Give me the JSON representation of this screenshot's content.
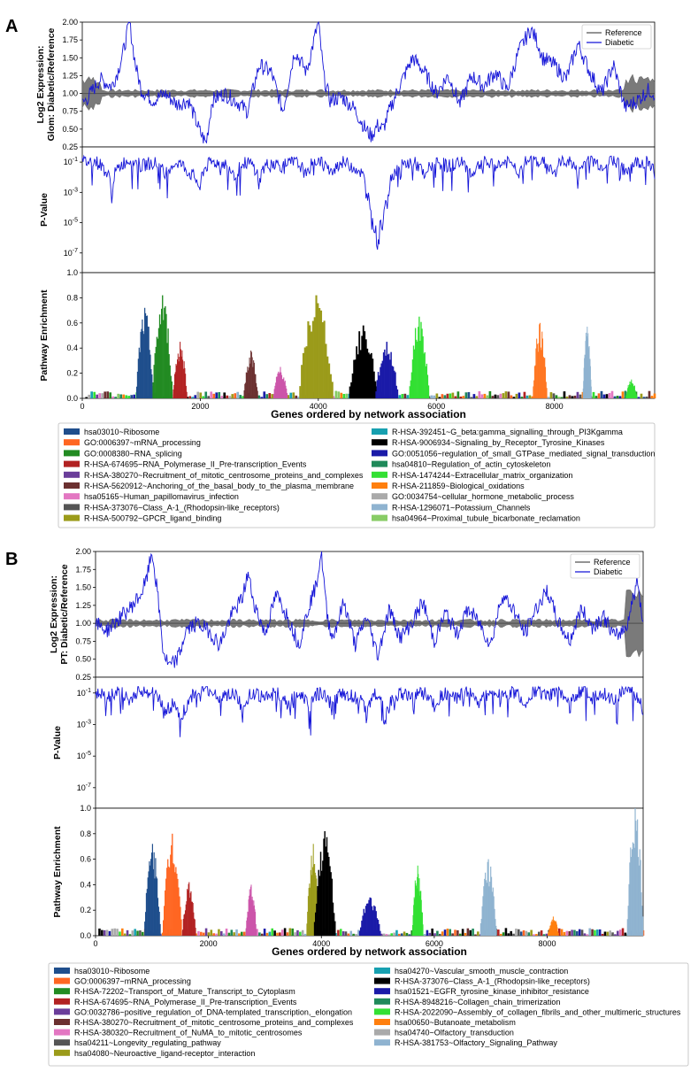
{
  "chart_data": [
    {
      "panel": "A",
      "type": "line",
      "xlabel": "Genes ordered by network association",
      "xlim": [
        0,
        9700
      ],
      "xticks": [
        "0",
        "2000",
        "4000",
        "6000",
        "8000"
      ],
      "expression": {
        "ylabel_line1": "Log2 Expression:",
        "ylabel_line2": "Glom: Diabetic/Reference",
        "ylim": [
          0.25,
          2.0
        ],
        "yticks": [
          "0.25",
          "0.50",
          "0.75",
          "1.00",
          "1.25",
          "1.50",
          "1.75",
          "2.00"
        ],
        "legend": [
          "Reference",
          "Diabetic"
        ],
        "series": [
          {
            "name": "Reference",
            "color": "#555555",
            "x": [
              0,
              500,
              1000,
              1500,
              2000,
              2500,
              3000,
              3500,
              4000,
              4500,
              5000,
              5500,
              6000,
              6500,
              7000,
              7500,
              8000,
              8500,
              9000,
              9500,
              9700
            ],
            "y": [
              1.0,
              1.0,
              1.0,
              1.0,
              1.0,
              1.0,
              1.0,
              1.0,
              1.0,
              1.0,
              1.0,
              1.0,
              1.0,
              1.0,
              1.0,
              1.0,
              1.0,
              1.0,
              1.0,
              1.0,
              1.0
            ]
          },
          {
            "name": "Diabetic",
            "color": "#1515d8",
            "x": [
              0,
              100,
              300,
              500,
              600,
              700,
              800,
              900,
              1000,
              1200,
              1400,
              1600,
              1800,
              2000,
              2100,
              2200,
              2400,
              2600,
              2800,
              3000,
              3200,
              3400,
              3600,
              3800,
              4000,
              4100,
              4200,
              4400,
              4600,
              4800,
              4900,
              5000,
              5100,
              5200,
              5400,
              5600,
              5800,
              6000,
              6200,
              6400,
              6600,
              6800,
              7000,
              7200,
              7400,
              7600,
              7700,
              7800,
              8000,
              8200,
              8400,
              8600,
              8800,
              9000,
              9200,
              9400,
              9600,
              9700
            ],
            "y": [
              0.85,
              0.95,
              1.2,
              1.1,
              1.3,
              1.6,
              2.0,
              1.4,
              1.05,
              0.9,
              1.0,
              0.85,
              0.9,
              0.45,
              0.3,
              0.9,
              1.0,
              0.9,
              0.75,
              1.4,
              1.3,
              0.75,
              1.6,
              1.3,
              2.0,
              1.2,
              0.9,
              0.95,
              0.8,
              0.5,
              0.4,
              0.55,
              0.5,
              0.75,
              1.15,
              1.5,
              1.3,
              1.0,
              1.25,
              0.85,
              1.25,
              1.1,
              1.3,
              1.05,
              1.6,
              1.9,
              1.75,
              1.5,
              1.4,
              1.2,
              1.7,
              1.3,
              1.0,
              1.4,
              0.8,
              0.9,
              1.05,
              1.0
            ]
          }
        ]
      },
      "pvalue": {
        "ylabel": "P-Value",
        "scale": "log",
        "yticks": [
          "10^-1",
          "10^-3",
          "10^-5",
          "10^-7"
        ],
        "x": [
          0,
          200,
          400,
          500,
          600,
          800,
          1000,
          1200,
          1400,
          1600,
          1800,
          2000,
          2200,
          2400,
          2600,
          2800,
          3000,
          3200,
          3400,
          3600,
          3800,
          4000,
          4200,
          4400,
          4600,
          4800,
          4900,
          5000,
          5100,
          5200,
          5400,
          5600,
          5800,
          6000,
          6200,
          6400,
          6600,
          6800,
          7000,
          7200,
          7400,
          7600,
          7800,
          8000,
          8200,
          8400,
          8600,
          8800,
          9000,
          9200,
          9400,
          9600,
          9700
        ],
        "y": [
          0.1,
          0.12,
          0.02,
          0.0003,
          0.03,
          0.15,
          0.05,
          0.1,
          0.01,
          0.1,
          0.02,
          5e-05,
          0.1,
          0.08,
          0.01,
          0.1,
          0.001,
          0.1,
          0.05,
          0.1,
          0.005,
          0.15,
          0.01,
          0.1,
          0.05,
          0.001,
          1e-05,
          1e-07,
          1e-05,
          0.001,
          0.05,
          0.1,
          0.003,
          0.1,
          0.05,
          0.1,
          0.01,
          0.1,
          0.05,
          0.1,
          0.02,
          0.15,
          0.1,
          0.01,
          0.15,
          0.002,
          0.15,
          0.05,
          0.15,
          0.01,
          0.1,
          0.1,
          0.01
        ]
      },
      "enrichment": {
        "ylabel": "Pathway Enrichment",
        "ylim": [
          0.0,
          1.0
        ],
        "yticks": [
          "0.0",
          "0.2",
          "0.4",
          "0.6",
          "0.8",
          "1.0"
        ],
        "peaks": [
          {
            "center": 1050,
            "width": 300,
            "height": 0.72,
            "color": "#1f4e8c"
          },
          {
            "center": 1350,
            "width": 350,
            "height": 0.82,
            "color": "#228b22"
          },
          {
            "center": 1650,
            "width": 250,
            "height": 0.45,
            "color": "#b22222"
          },
          {
            "center": 2850,
            "width": 250,
            "height": 0.38,
            "color": "#6b3030"
          },
          {
            "center": 3350,
            "width": 250,
            "height": 0.25,
            "color": "#cc55aa"
          },
          {
            "center": 3950,
            "width": 600,
            "height": 0.82,
            "color": "#9b9b1a"
          },
          {
            "center": 4750,
            "width": 500,
            "height": 0.58,
            "color": "#000000"
          },
          {
            "center": 5150,
            "width": 400,
            "height": 0.45,
            "color": "#1a1aa8"
          },
          {
            "center": 5700,
            "width": 350,
            "height": 0.65,
            "color": "#33e033"
          },
          {
            "center": 7750,
            "width": 250,
            "height": 0.6,
            "color": "#ff7722"
          },
          {
            "center": 8550,
            "width": 150,
            "height": 0.57,
            "color": "#8fb3d0"
          },
          {
            "center": 9300,
            "width": 200,
            "height": 0.15,
            "color": "#33e033"
          }
        ]
      },
      "legend": [
        {
          "label": "hsa03010~Ribosome",
          "color": "#1f4e8c"
        },
        {
          "label": "GO:0006397~mRNA_processing",
          "color": "#ff6622"
        },
        {
          "label": "GO:0008380~RNA_splicing",
          "color": "#228b22"
        },
        {
          "label": "R-HSA-674695~RNA_Polymerase_II_Pre-transcription_Events",
          "color": "#b22222"
        },
        {
          "label": "R-HSA-380270~Recruitment_of_mitotic_centrosome_proteins_and_complexes",
          "color": "#6a3d9a"
        },
        {
          "label": "R-HSA-5620912~Anchoring_of_the_basal_body_to_the_plasma_membrane",
          "color": "#6b3030"
        },
        {
          "label": "hsa05165~Human_papillomavirus_infection",
          "color": "#e377c2"
        },
        {
          "label": "R-HSA-373076~Class_A-1_(Rhodopsin-like_receptors)",
          "color": "#555555"
        },
        {
          "label": "R-HSA-500792~GPCR_ligand_binding",
          "color": "#9b9b1a"
        },
        {
          "label": "R-HSA-392451~G_beta:gamma_signalling_through_PI3Kgamma",
          "color": "#17a0b0"
        },
        {
          "label": "R-HSA-9006934~Signaling_by_Receptor_Tyrosine_Kinases",
          "color": "#000000"
        },
        {
          "label": "GO:0051056~regulation_of_small_GTPase_mediated_signal_transduction",
          "color": "#1a1aa8"
        },
        {
          "label": "hsa04810~Regulation_of_actin_cytoskeleton",
          "color": "#1f8a5a"
        },
        {
          "label": "R-HSA-1474244~Extracellular_matrix_organization",
          "color": "#33e033"
        },
        {
          "label": "R-HSA-211859~Biological_oxidations",
          "color": "#ff7f0e"
        },
        {
          "label": "GO:0034754~cellular_hormone_metabolic_process",
          "color": "#aaaaaa"
        },
        {
          "label": "R-HSA-1296071~Potassium_Channels",
          "color": "#8fb3d0"
        },
        {
          "label": "hsa04964~Proximal_tubule_bicarbonate_reclamation",
          "color": "#88cc66"
        }
      ]
    },
    {
      "panel": "B",
      "type": "line",
      "xlabel": "Genes ordered by network association",
      "xlim": [
        0,
        9700
      ],
      "xticks": [
        "0",
        "2000",
        "4000",
        "6000",
        "8000"
      ],
      "expression": {
        "ylabel_line1": "Log2 Expression:",
        "ylabel_line2": "PT: Diabetic/Reference",
        "ylim": [
          0.25,
          2.0
        ],
        "yticks": [
          "0.25",
          "0.50",
          "0.75",
          "1.00",
          "1.25",
          "1.50",
          "1.75",
          "2.00"
        ],
        "legend": [
          "Reference",
          "Diabetic"
        ],
        "series": [
          {
            "name": "Reference",
            "color": "#555555",
            "x": [
              0,
              500,
              1000,
              1500,
              2000,
              2500,
              3000,
              3500,
              4000,
              4500,
              5000,
              5500,
              6000,
              6500,
              7000,
              7500,
              8000,
              8500,
              9000,
              9500,
              9700
            ],
            "y": [
              1.0,
              1.0,
              1.0,
              1.0,
              1.0,
              1.0,
              1.0,
              1.0,
              1.0,
              1.0,
              1.0,
              1.0,
              1.0,
              1.0,
              1.0,
              1.0,
              1.0,
              1.0,
              1.0,
              1.0,
              1.0
            ]
          },
          {
            "name": "Diabetic",
            "color": "#1515d8",
            "x": [
              0,
              200,
              400,
              600,
              800,
              900,
              1000,
              1100,
              1200,
              1300,
              1400,
              1500,
              1600,
              1800,
              2000,
              2200,
              2400,
              2600,
              2700,
              2800,
              3000,
              3200,
              3400,
              3600,
              3800,
              3900,
              4000,
              4100,
              4200,
              4400,
              4600,
              4800,
              5000,
              5200,
              5400,
              5600,
              5800,
              6000,
              6200,
              6400,
              6600,
              6800,
              7000,
              7200,
              7400,
              7600,
              7800,
              8000,
              8200,
              8400,
              8600,
              8800,
              9000,
              9200,
              9400,
              9600,
              9700
            ],
            "y": [
              1.0,
              0.9,
              1.05,
              1.2,
              1.4,
              1.6,
              2.0,
              1.4,
              0.6,
              0.4,
              0.45,
              0.6,
              0.9,
              1.0,
              0.9,
              0.7,
              1.1,
              1.35,
              1.7,
              1.3,
              0.85,
              1.4,
              1.1,
              0.7,
              1.3,
              1.5,
              2.0,
              1.1,
              0.8,
              1.3,
              0.7,
              1.1,
              0.55,
              1.2,
              0.8,
              1.0,
              1.3,
              0.75,
              1.15,
              0.85,
              1.2,
              1.0,
              0.7,
              1.4,
              1.2,
              0.85,
              1.2,
              1.45,
              1.0,
              0.75,
              1.2,
              0.95,
              1.1,
              0.8,
              0.95,
              1.6,
              1.0
            ]
          }
        ]
      },
      "pvalue": {
        "ylabel": "P-Value",
        "scale": "log",
        "yticks": [
          "10^-1",
          "10^-3",
          "10^-5",
          "10^-7"
        ],
        "x": [
          0,
          200,
          400,
          600,
          800,
          1000,
          1200,
          1400,
          1500,
          1600,
          1800,
          2000,
          2200,
          2400,
          2600,
          2800,
          3000,
          3200,
          3400,
          3600,
          3800,
          4000,
          4200,
          4400,
          4600,
          4800,
          5000,
          5100,
          5200,
          5400,
          5600,
          5800,
          6000,
          6200,
          6400,
          6600,
          6800,
          7000,
          7200,
          7400,
          7600,
          7800,
          8000,
          8200,
          8400,
          8600,
          8800,
          9000,
          9200,
          9400,
          9600,
          9700
        ],
        "y": [
          0.1,
          0.05,
          0.12,
          0.02,
          0.15,
          0.1,
          0.005,
          0.02,
          5e-05,
          0.01,
          0.1,
          0.15,
          0.05,
          0.1,
          0.001,
          0.1,
          0.05,
          0.1,
          0.01,
          0.1,
          0.005,
          0.12,
          0.01,
          0.1,
          0.05,
          0.002,
          0.1,
          1e-07,
          0.01,
          0.1,
          0.05,
          0.1,
          0.01,
          0.1,
          0.05,
          0.12,
          0.02,
          0.1,
          0.05,
          0.12,
          0.01,
          0.15,
          0.05,
          0.12,
          0.002,
          0.15,
          0.05,
          0.1,
          0.02,
          0.15,
          0.05,
          0.005
        ]
      },
      "enrichment": {
        "ylabel": "Pathway Enrichment",
        "ylim": [
          0.0,
          1.0
        ],
        "yticks": [
          "0.0",
          "0.2",
          "0.4",
          "0.6",
          "0.8",
          "1.0"
        ],
        "peaks": [
          {
            "center": 1000,
            "width": 300,
            "height": 0.72,
            "color": "#1f4e8c"
          },
          {
            "center": 1350,
            "width": 350,
            "height": 0.8,
            "color": "#ff6622"
          },
          {
            "center": 1650,
            "width": 250,
            "height": 0.42,
            "color": "#b22222"
          },
          {
            "center": 2750,
            "width": 200,
            "height": 0.4,
            "color": "#cc55aa"
          },
          {
            "center": 3850,
            "width": 250,
            "height": 0.72,
            "color": "#9b9b1a"
          },
          {
            "center": 4050,
            "width": 400,
            "height": 0.82,
            "color": "#000000"
          },
          {
            "center": 4850,
            "width": 400,
            "height": 0.3,
            "color": "#1a1aa8"
          },
          {
            "center": 5700,
            "width": 200,
            "height": 0.55,
            "color": "#33e033"
          },
          {
            "center": 6950,
            "width": 300,
            "height": 0.6,
            "color": "#8fb3d0"
          },
          {
            "center": 8100,
            "width": 200,
            "height": 0.15,
            "color": "#ff7f0e"
          },
          {
            "center": 9550,
            "width": 300,
            "height": 1.0,
            "color": "#8fb3d0"
          }
        ]
      },
      "legend": [
        {
          "label": "hsa03010~Ribosome",
          "color": "#1f4e8c"
        },
        {
          "label": "GO:0006397~mRNA_processing",
          "color": "#ff6622"
        },
        {
          "label": "R-HSA-72202~Transport_of_Mature_Transcript_to_Cytoplasm",
          "color": "#228b22"
        },
        {
          "label": "R-HSA-674695~RNA_Polymerase_II_Pre-transcription_Events",
          "color": "#b22222"
        },
        {
          "label": "GO:0032786~positive_regulation_of_DNA-templated_transcription,_elongation",
          "color": "#6a3d9a"
        },
        {
          "label": "R-HSA-380270~Recruitment_of_mitotic_centrosome_proteins_and_complexes",
          "color": "#6b3030"
        },
        {
          "label": "R-HSA-380320~Recruitment_of_NuMA_to_mitotic_centrosomes",
          "color": "#e377c2"
        },
        {
          "label": "hsa04211~Longevity_regulating_pathway",
          "color": "#555555"
        },
        {
          "label": "hsa04080~Neuroactive_ligand-receptor_interaction",
          "color": "#9b9b1a"
        },
        {
          "label": "hsa04270~Vascular_smooth_muscle_contraction",
          "color": "#17a0b0"
        },
        {
          "label": "R-HSA-373076~Class_A-1_(Rhodopsin-like_receptors)",
          "color": "#000000"
        },
        {
          "label": "hsa01521~EGFR_tyrosine_kinase_inhibitor_resistance",
          "color": "#1a1aa8"
        },
        {
          "label": "R-HSA-8948216~Collagen_chain_trimerization",
          "color": "#1f8a5a"
        },
        {
          "label": "R-HSA-2022090~Assembly_of_collagen_fibrils_and_other_multimeric_structures",
          "color": "#33e033"
        },
        {
          "label": "hsa00650~Butanoate_metabolism",
          "color": "#ff7f0e"
        },
        {
          "label": "hsa04740~Olfactory_transduction",
          "color": "#aaaaaa"
        },
        {
          "label": "R-HSA-381753~Olfactory_Signaling_Pathway",
          "color": "#8fb3d0"
        }
      ]
    }
  ]
}
